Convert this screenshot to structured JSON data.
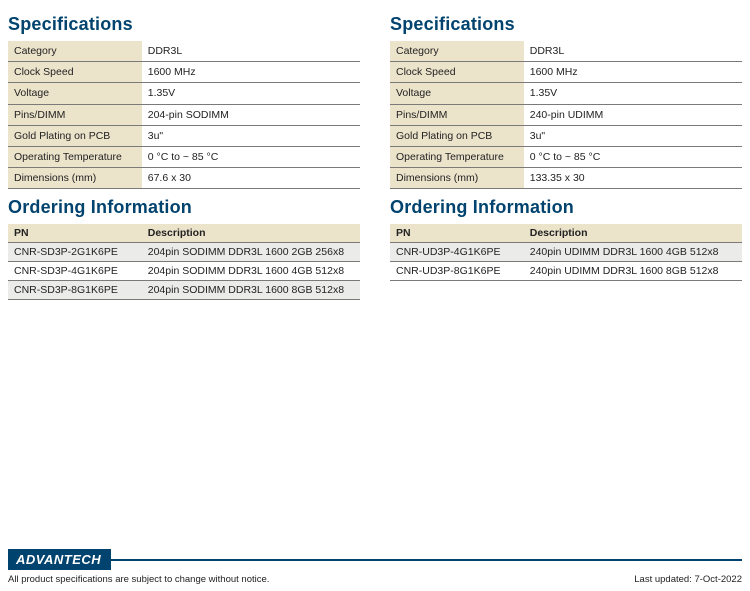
{
  "brand": "ADVANTECH",
  "disclaimer": "All product specifications are subject to change without notice.",
  "last_updated": "Last updated: 7-Oct-2022",
  "colors": {
    "heading": "#00436e",
    "key_bg": "#ece3cb",
    "row_alt_bg": "#ebebea",
    "row_bg": "#ffffff",
    "rule": "#7a7a78",
    "page_bg": "#ffffff",
    "text": "#222222"
  },
  "left": {
    "spec_heading": "Specifications",
    "order_heading": "Ordering Information",
    "specs": [
      {
        "key": "Category",
        "val": "DDR3L"
      },
      {
        "key": "Clock Speed",
        "val": "1600 MHz"
      },
      {
        "key": "Voltage",
        "val": "1.35V"
      },
      {
        "key": "Pins/DIMM",
        "val": "204-pin SODIMM"
      },
      {
        "key": "Gold Plating on PCB",
        "val": "3u\""
      },
      {
        "key": "Operating Temperature",
        "val": "0 °C to ~ 85 °C"
      },
      {
        "key": "Dimensions (mm)",
        "val": "67.6 x 30"
      }
    ],
    "order_headers": {
      "pn": "PN",
      "desc": "Description"
    },
    "orders": [
      {
        "pn": "CNR-SD3P-2G1K6PE",
        "desc": "204pin SODIMM DDR3L 1600 2GB 256x8"
      },
      {
        "pn": "CNR-SD3P-4G1K6PE",
        "desc": "204pin SODIMM DDR3L 1600 4GB 512x8"
      },
      {
        "pn": "CNR-SD3P-8G1K6PE",
        "desc": "204pin SODIMM DDR3L 1600 8GB 512x8"
      }
    ]
  },
  "right": {
    "spec_heading": "Specifications",
    "order_heading": "Ordering Information",
    "specs": [
      {
        "key": "Category",
        "val": "DDR3L"
      },
      {
        "key": "Clock Speed",
        "val": "1600 MHz"
      },
      {
        "key": "Voltage",
        "val": "1.35V"
      },
      {
        "key": "Pins/DIMM",
        "val": "240-pin UDIMM"
      },
      {
        "key": "Gold Plating on PCB",
        "val": "3u\""
      },
      {
        "key": "Operating Temperature",
        "val": "0 °C to ~ 85 °C"
      },
      {
        "key": "Dimensions (mm)",
        "val": "133.35 x 30"
      }
    ],
    "order_headers": {
      "pn": "PN",
      "desc": "Description"
    },
    "orders": [
      {
        "pn": "CNR-UD3P-4G1K6PE",
        "desc": "240pin UDIMM DDR3L 1600 4GB 512x8"
      },
      {
        "pn": "CNR-UD3P-8G1K6PE",
        "desc": "240pin UDIMM DDR3L 1600 8GB 512x8"
      }
    ]
  }
}
